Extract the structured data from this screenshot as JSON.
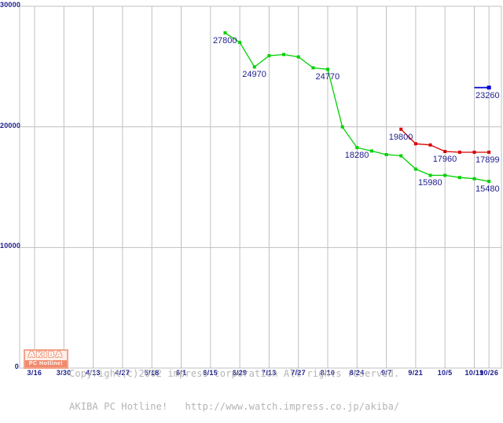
{
  "page": {
    "background": "#ffffff"
  },
  "chart_data": {
    "type": "line",
    "title": "",
    "unit": "yen",
    "ylim": [
      0,
      30000
    ],
    "grid": true,
    "grid_color": "#c0c0c0",
    "label_color": "#1c1c8f",
    "x_tick_labels": [
      "3/16",
      "3/30",
      "4/13",
      "4/27",
      "5/18",
      "6/1",
      "6/15",
      "6/29",
      "7/13",
      "7/27",
      "8/10",
      "8/24",
      "9/7",
      "9/21",
      "10/5",
      "10/19",
      "10/26"
    ],
    "x_tick_weeks": [
      0,
      2,
      4,
      6,
      8,
      10,
      12,
      14,
      16,
      18,
      20,
      22,
      24,
      26,
      28,
      30,
      31
    ],
    "y_ticks": [
      {
        "value": 0,
        "label": "0"
      },
      {
        "value": 10000,
        "label": "10000"
      },
      {
        "value": 20000,
        "label": "20000"
      },
      {
        "value": 30000,
        "label": "30000"
      }
    ],
    "series": [
      {
        "name": "price-series-green",
        "color": "#00d000",
        "line_width": 1.3,
        "markers": "all",
        "start_week": 13,
        "dates": [
          "6/22",
          "6/29",
          "7/6",
          "7/13",
          "7/20",
          "7/27",
          "8/3",
          "8/10",
          "8/17",
          "8/24",
          "8/31",
          "9/7",
          "9/14",
          "9/21",
          "9/28",
          "10/5",
          "10/12",
          "10/19",
          "10/26"
        ],
        "values": [
          27800,
          27000,
          24970,
          25900,
          26000,
          25800,
          24900,
          24770,
          20000,
          18280,
          18000,
          17700,
          17600,
          16500,
          15980,
          15980,
          15800,
          15700,
          15480
        ],
        "point_labels": {
          "0": "27800",
          "2": "24970",
          "7": "24770",
          "9": "18280",
          "14": "15980",
          "18": "15480"
        }
      },
      {
        "name": "price-series-red",
        "color": "#d80000",
        "line_width": 1.3,
        "markers": "all",
        "start_week": 25,
        "dates": [
          "9/14",
          "9/21",
          "9/28",
          "10/5",
          "10/12",
          "10/19",
          "10/26"
        ],
        "values": [
          19800,
          18600,
          18500,
          17960,
          17899,
          17899,
          17899
        ],
        "point_labels": {
          "0": "19800",
          "3": "17960",
          "6": "17899"
        }
      },
      {
        "name": "price-series-blue",
        "color": "#0000d8",
        "line_width": 1.8,
        "markers": "last",
        "start_week": 30,
        "dates": [
          "10/19",
          "10/26"
        ],
        "values": [
          23260,
          23260
        ],
        "point_labels": {
          "1": "23260"
        }
      }
    ]
  },
  "logo": {
    "title": "AKIBA",
    "subtitle": "PC Hotline!"
  },
  "footer": {
    "line1": "Copyright(c)2002 impress corporation All rights reserved.",
    "line2": "AKIBA PC Hotline!   http://www.watch.impress.co.jp/akiba/"
  }
}
